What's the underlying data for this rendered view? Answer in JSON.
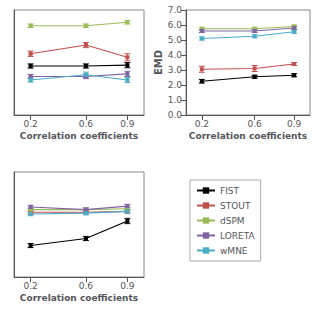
{
  "chart_data": [
    {
      "type": "line",
      "marker": "square",
      "grid": false,
      "tick_labels": "x",
      "xlabel": "Correlation coefficients",
      "x": [
        0.2,
        0.6,
        0.9
      ],
      "xlim": [
        0.08,
        1.02
      ],
      "xticks": [
        0.2,
        0.6,
        0.9
      ],
      "ylim": [
        1,
        7
      ],
      "series": [
        {
          "name": "FIST",
          "color": "#000000",
          "values": [
            3.8,
            3.8,
            3.85
          ],
          "yerr": [
            0.12,
            0.12,
            0.15
          ]
        },
        {
          "name": "STOUT",
          "color": "#c0504d",
          "values": [
            4.5,
            5.0,
            4.3
          ],
          "yerr": [
            0.15,
            0.15,
            0.2
          ]
        },
        {
          "name": "dSPM",
          "color": "#9bbb59",
          "values": [
            6.1,
            6.1,
            6.3
          ],
          "yerr": [
            0.1,
            0.1,
            0.1
          ]
        },
        {
          "name": "LORETA",
          "color": "#8064a2",
          "values": [
            3.2,
            3.2,
            3.35
          ],
          "yerr": [
            0.12,
            0.12,
            0.15
          ]
        },
        {
          "name": "wMNE",
          "color": "#4bacc6",
          "values": [
            3.0,
            3.3,
            3.0
          ],
          "yerr": [
            0.12,
            0.15,
            0.15
          ]
        }
      ]
    },
    {
      "type": "line",
      "marker": "square",
      "grid": false,
      "xlabel": "Correlation coefficients",
      "ylabel": "EMD",
      "x": [
        0.2,
        0.6,
        0.9
      ],
      "xlim": [
        0.08,
        1.02
      ],
      "xticks": [
        0.2,
        0.6,
        0.9
      ],
      "ylim": [
        0.0,
        7.0
      ],
      "yticks": [
        {
          "value": 0,
          "label": "0.0"
        },
        {
          "value": 1,
          "label": "1.0"
        },
        {
          "value": 2,
          "label": "2.0"
        },
        {
          "value": 3,
          "label": "3.0"
        },
        {
          "value": 4,
          "label": "4.0"
        },
        {
          "value": 5,
          "label": "5.0"
        },
        {
          "value": 6,
          "label": "6.0"
        },
        {
          "value": 7,
          "label": "7.0"
        }
      ],
      "series": [
        {
          "name": "FIST",
          "color": "#000000",
          "values": [
            2.25,
            2.55,
            2.65
          ],
          "yerr": [
            0.12,
            0.1,
            0.1
          ]
        },
        {
          "name": "STOUT",
          "color": "#c0504d",
          "values": [
            3.05,
            3.1,
            3.4
          ],
          "yerr": [
            0.2,
            0.2,
            0.1
          ]
        },
        {
          "name": "dSPM",
          "color": "#9bbb59",
          "values": [
            5.75,
            5.75,
            5.9
          ],
          "yerr": [
            0.1,
            0.1,
            0.1
          ]
        },
        {
          "name": "LORETA",
          "color": "#8064a2",
          "values": [
            5.6,
            5.6,
            5.8
          ],
          "yerr": [
            0.1,
            0.1,
            0.1
          ]
        },
        {
          "name": "wMNE",
          "color": "#4bacc6",
          "values": [
            5.1,
            5.25,
            5.55
          ],
          "yerr": [
            0.1,
            0.1,
            0.1
          ]
        }
      ]
    },
    {
      "type": "line",
      "marker": "square",
      "grid": false,
      "tick_labels": "x",
      "legend": "right",
      "xlabel": "Correlation coefficients",
      "x": [
        0.2,
        0.6,
        0.9
      ],
      "xlim": [
        0.08,
        1.02
      ],
      "xticks": [
        0.2,
        0.6,
        0.9
      ],
      "ylim": [
        1,
        7
      ],
      "series": [
        {
          "name": "FIST",
          "color": "#000000",
          "values": [
            2.8,
            3.2,
            4.2
          ],
          "yerr": [
            0.12,
            0.12,
            0.15
          ]
        },
        {
          "name": "STOUT",
          "color": "#c0504d",
          "values": [
            4.7,
            4.7,
            4.75
          ],
          "yerr": [
            0.1,
            0.1,
            0.1
          ]
        },
        {
          "name": "dSPM",
          "color": "#9bbb59",
          "values": [
            4.85,
            4.85,
            4.9
          ],
          "yerr": [
            0.1,
            0.1,
            0.1
          ]
        },
        {
          "name": "LORETA",
          "color": "#8064a2",
          "values": [
            5.0,
            4.85,
            5.05
          ],
          "yerr": [
            0.1,
            0.1,
            0.1
          ]
        },
        {
          "name": "wMNE",
          "color": "#4bacc6",
          "values": [
            4.6,
            4.65,
            4.75
          ],
          "yerr": [
            0.1,
            0.1,
            0.1
          ]
        }
      ]
    }
  ]
}
